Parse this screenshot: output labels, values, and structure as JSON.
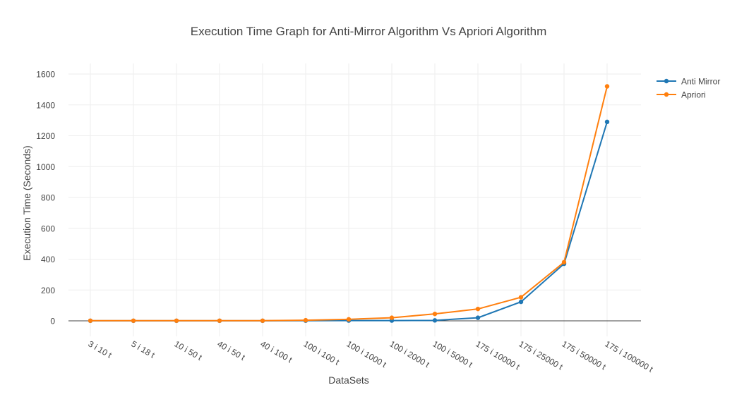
{
  "chart_data": {
    "type": "line",
    "title": "Execution Time Graph for Anti-Mirror Algorithm Vs Apriori Algorithm",
    "xlabel": "DataSets",
    "ylabel": "Execution Time (Seconds)",
    "categories": [
      "3 i 10 t",
      "5 i 18 t",
      "10 i 50 t",
      "40 i 50 t",
      "40 i 100 t",
      "100 i 100 t",
      "100 i 1000 t",
      "100 i 2000 t",
      "100 i 5000 t",
      "175 i 10000 t",
      "175 i 25000 t",
      "175 i 50000 t",
      "175 i 100000 t"
    ],
    "ylim": [
      -100,
      1600
    ],
    "yticks": [
      0,
      200,
      400,
      600,
      800,
      1000,
      1200,
      1400,
      1600
    ],
    "grid": true,
    "legend_position": "top-right",
    "series": [
      {
        "name": "Anti Mirror",
        "color": "#1f77b4",
        "values": [
          0.5,
          0.5,
          0.5,
          0.5,
          0.5,
          1,
          2,
          2,
          3,
          20,
          123,
          370,
          1290
        ]
      },
      {
        "name": "Apriori",
        "color": "#ff7f0e",
        "values": [
          1,
          1,
          1,
          1,
          1,
          4,
          10,
          20,
          45,
          77,
          153,
          380,
          1520
        ]
      }
    ]
  }
}
